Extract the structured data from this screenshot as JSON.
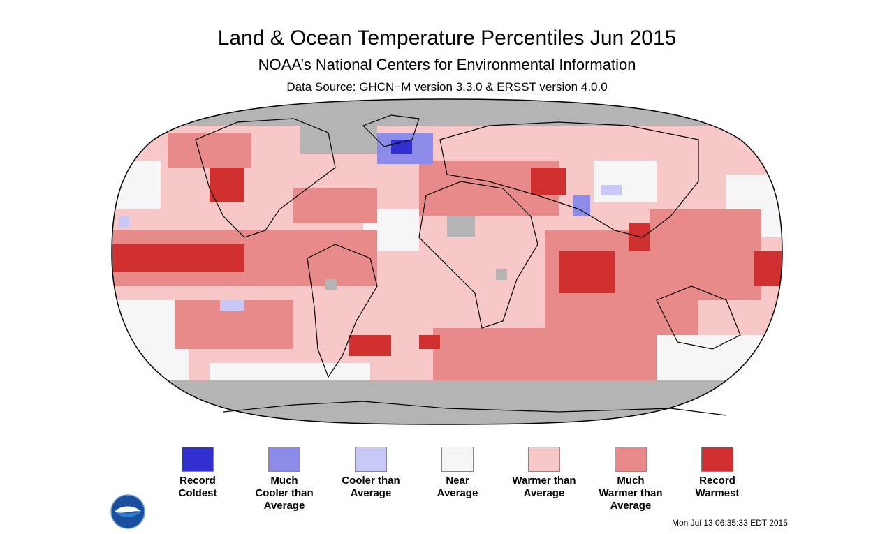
{
  "header": {
    "title": "Land & Ocean Temperature Percentiles Jun 2015",
    "subtitle": "NOAA’s National Centers for Environmental Information",
    "source": "Data Source: GHCN−M version 3.3.0 & ERSST version 4.0.0"
  },
  "map": {
    "projection": "Robinson",
    "missing_data_color": "#b4b4b4",
    "land_outline_color": "#000000"
  },
  "legend": {
    "items": [
      {
        "label": "Record\nColdest",
        "color": "#3030d0"
      },
      {
        "label": "Much\nCooler than\nAverage",
        "color": "#8c8ce8"
      },
      {
        "label": "Cooler than\nAverage",
        "color": "#c8c8f8"
      },
      {
        "label": "Near\nAverage",
        "color": "#f6f6f6"
      },
      {
        "label": "Warmer than\nAverage",
        "color": "#f8c8c8"
      },
      {
        "label": "Much\nWarmer than\nAverage",
        "color": "#e88a8a"
      },
      {
        "label": "Record\nWarmest",
        "color": "#d03030"
      }
    ]
  },
  "footer": {
    "timestamp": "Mon Jul 13 06:35:33 EDT 2015",
    "logo_icon": "noaa-logo-icon"
  }
}
